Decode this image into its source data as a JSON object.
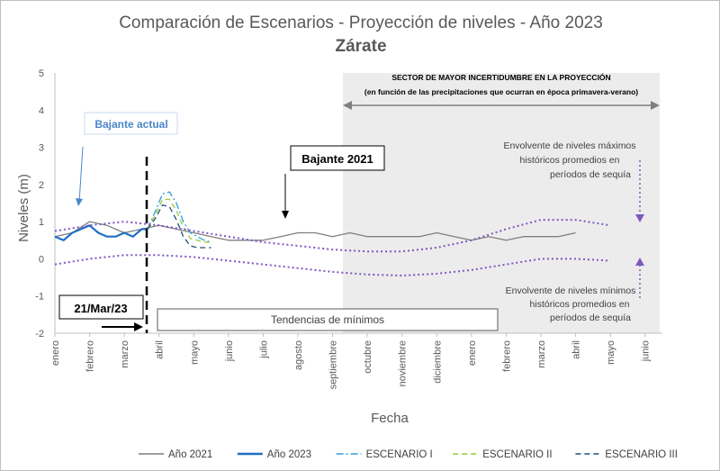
{
  "chart_data": {
    "type": "line",
    "title": "Comparación de Escenarios - Proyección de niveles - Año 2023",
    "subtitle": "Zárate",
    "xlabel": "Fecha",
    "ylabel": "Niveles (m)",
    "ylim": [
      -2,
      5
    ],
    "y_ticks": [
      "-2",
      "-1",
      "0",
      "1",
      "2",
      "3",
      "4",
      "5"
    ],
    "x_range_months": [
      0,
      17.5
    ],
    "x_ticks": [
      "enero",
      "febrero",
      "marzo",
      "abril",
      "mayo",
      "junio",
      "julio",
      "agosto",
      "septiembre",
      "octubre",
      "noviembre",
      "diciembre",
      "enero",
      "febrero",
      "marzo",
      "abril",
      "mayo",
      "junio"
    ],
    "grid": false,
    "legend_position": "bottom",
    "series": [
      {
        "name": "Año 2021",
        "color": "#7f7f7f",
        "style": "solid",
        "x": [
          0,
          0.5,
          1,
          1.5,
          2,
          2.5,
          3,
          3.5,
          4,
          4.5,
          5,
          5.5,
          6,
          6.5,
          7,
          7.5,
          8,
          8.5,
          9,
          9.5,
          10,
          10.5,
          11,
          11.5,
          12,
          12.5,
          13,
          13.5,
          14,
          14.5,
          15
        ],
        "y": [
          0.6,
          0.7,
          1.0,
          0.9,
          0.7,
          0.8,
          0.9,
          0.8,
          0.7,
          0.6,
          0.5,
          0.5,
          0.5,
          0.6,
          0.7,
          0.7,
          0.6,
          0.7,
          0.6,
          0.6,
          0.6,
          0.6,
          0.7,
          0.6,
          0.5,
          0.6,
          0.5,
          0.6,
          0.6,
          0.6,
          0.7
        ]
      },
      {
        "name": "Año 2023",
        "color": "#1f6fc4",
        "style": "solid",
        "x": [
          0,
          0.25,
          0.5,
          0.75,
          1,
          1.25,
          1.5,
          1.75,
          2,
          2.25,
          2.5,
          2.67
        ],
        "y": [
          0.6,
          0.5,
          0.7,
          0.8,
          0.9,
          0.7,
          0.6,
          0.6,
          0.7,
          0.6,
          0.8,
          0.8
        ]
      },
      {
        "name": "ESCENARIO I",
        "color": "#2e9fd8",
        "style": "dash-dot",
        "x": [
          2.67,
          2.9,
          3.1,
          3.3,
          3.5,
          3.7,
          3.9,
          4.1,
          4.3,
          4.5
        ],
        "y": [
          0.8,
          1.3,
          1.75,
          1.8,
          1.5,
          1.0,
          0.7,
          0.6,
          0.5,
          0.45
        ]
      },
      {
        "name": "ESCENARIO II",
        "color": "#9bc93d",
        "style": "dashed",
        "x": [
          2.67,
          2.9,
          3.1,
          3.3,
          3.5,
          3.7,
          3.9,
          4.1,
          4.3,
          4.5
        ],
        "y": [
          0.8,
          1.2,
          1.6,
          1.6,
          1.3,
          0.85,
          0.55,
          0.5,
          0.45,
          0.45
        ]
      },
      {
        "name": "ESCENARIO III",
        "color": "#1f4e79",
        "style": "dashed",
        "x": [
          2.67,
          2.9,
          3.1,
          3.3,
          3.5,
          3.7,
          3.9,
          4.1,
          4.3,
          4.5
        ],
        "y": [
          0.8,
          1.1,
          1.45,
          1.4,
          1.05,
          0.6,
          0.35,
          0.3,
          0.3,
          0.3
        ]
      },
      {
        "name": "",
        "color": "#7e57c2",
        "style": "dotted",
        "x": [
          0,
          1,
          2,
          3,
          4,
          5,
          6,
          7,
          8,
          9,
          10,
          11,
          12,
          13,
          14,
          15,
          16
        ],
        "y": [
          0.75,
          0.9,
          1.0,
          0.9,
          0.75,
          0.6,
          0.45,
          0.35,
          0.25,
          0.2,
          0.2,
          0.3,
          0.5,
          0.8,
          1.05,
          1.05,
          0.9
        ]
      },
      {
        "name": "",
        "color": "#7e57c2",
        "style": "dotted",
        "x": [
          0,
          1,
          2,
          3,
          4,
          5,
          6,
          7,
          8,
          9,
          10,
          11,
          12,
          13,
          14,
          15,
          16
        ],
        "y": [
          -0.15,
          0.0,
          0.1,
          0.1,
          0.05,
          -0.05,
          -0.15,
          -0.25,
          -0.35,
          -0.42,
          -0.45,
          -0.4,
          -0.3,
          -0.15,
          0.0,
          0.0,
          -0.05
        ]
      }
    ],
    "annotations": {
      "top_header_1": "SECTOR DE MAYOR INCERTIDUMBRE EN LA PROYECCIÓN",
      "top_header_2": "(en función de las precipitaciones que ocurran  en época primavera-verano)",
      "bajante_actual": "Bajante actual",
      "bajante_2021": "Bajante 2021",
      "date_box": "21/Mar/23",
      "tendencias": "Tendencias de mínimos",
      "env_max_1": "Envolvente de niveles máximos",
      "env_max_2": "históricos promedios en",
      "env_max_3": "períodos de sequía",
      "env_min_1": "Envolvente de niveles mínimos",
      "env_min_2": "históricos promedios en",
      "env_min_3": "períodos de sequía"
    }
  }
}
